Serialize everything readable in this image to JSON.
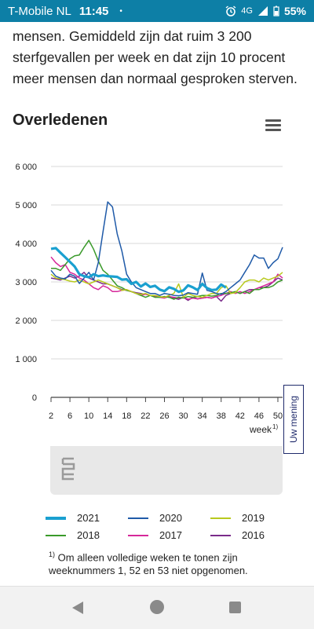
{
  "statusbar": {
    "carrier": "T-Mobile  NL",
    "time": "11:45",
    "dot": "•",
    "network": "4G",
    "battery": "55%",
    "icons": [
      "alarm-icon",
      "signal-icon",
      "battery-icon"
    ]
  },
  "intro_text": "mensen. Gemiddeld zijn dat ruim 3 200 sterfgevallen per week en dat zijn 10 procent meer mensen dan normaal gesproken sterven.",
  "chart_title": "Overledenen",
  "feedback_label": "Uw mening",
  "footnote": {
    "marker": "1)",
    "text": "Om alleen volledige weken te tonen zijn weeknummers 1, 52 en 53 niet opgenomen."
  },
  "chart_data": {
    "type": "line",
    "title": "Overledenen",
    "xlabel": "week",
    "xlabel_sup": "1)",
    "ylabel": "",
    "ylim": [
      0,
      6000
    ],
    "xlim": [
      2,
      51
    ],
    "yticks": [
      0,
      1000,
      2000,
      3000,
      4000,
      5000,
      6000
    ],
    "ytick_labels": [
      "0",
      "1 000",
      "2 000",
      "3 000",
      "4 000",
      "5 000",
      "6 000"
    ],
    "xticks": [
      2,
      6,
      10,
      14,
      18,
      22,
      26,
      30,
      34,
      38,
      42,
      46,
      50
    ],
    "grid": true,
    "legend_position": "bottom",
    "series": [
      {
        "name": "2021",
        "color": "#1aa0d0",
        "width": 3.2,
        "x": [
          2,
          3,
          4,
          5,
          6,
          7,
          8,
          9,
          10,
          11,
          12,
          13,
          14,
          15,
          16,
          17,
          18,
          19,
          20,
          21,
          22,
          23,
          24,
          25,
          26,
          27,
          28,
          29,
          30,
          31,
          32,
          33,
          34,
          35,
          36,
          37,
          38,
          39
        ],
        "y": [
          3860,
          3880,
          3760,
          3640,
          3520,
          3400,
          3200,
          3150,
          3120,
          3200,
          3150,
          3170,
          3150,
          3140,
          3130,
          3060,
          3070,
          2950,
          3000,
          2880,
          2960,
          2870,
          2900,
          2800,
          2760,
          2860,
          2820,
          2740,
          2780,
          2910,
          2860,
          2790,
          2950,
          2840,
          2790,
          2800,
          2930,
          2850
        ]
      },
      {
        "name": "2020",
        "color": "#1f5aa8",
        "width": 1.5,
        "x": [
          2,
          3,
          4,
          5,
          6,
          7,
          8,
          9,
          10,
          11,
          12,
          13,
          14,
          15,
          16,
          17,
          18,
          19,
          20,
          21,
          22,
          23,
          24,
          25,
          26,
          27,
          28,
          29,
          30,
          31,
          32,
          33,
          34,
          35,
          36,
          37,
          38,
          39,
          40,
          41,
          42,
          43,
          44,
          45,
          46,
          47,
          48,
          49,
          50,
          51
        ],
        "y": [
          3300,
          3150,
          3100,
          3080,
          3200,
          3150,
          2960,
          3100,
          3250,
          3050,
          3500,
          4300,
          5080,
          4950,
          4250,
          3800,
          3200,
          3000,
          2850,
          2800,
          2750,
          2700,
          2700,
          2650,
          2700,
          2680,
          2650,
          2640,
          2660,
          2720,
          2700,
          2680,
          3230,
          2780,
          2750,
          2700,
          2680,
          2750,
          2850,
          2950,
          3050,
          3250,
          3450,
          3700,
          3620,
          3620,
          3350,
          3500,
          3600,
          3900
        ]
      },
      {
        "name": "2019",
        "color": "#b8c91e",
        "width": 1.5,
        "x": [
          2,
          3,
          4,
          5,
          6,
          7,
          8,
          9,
          10,
          11,
          12,
          13,
          14,
          15,
          16,
          17,
          18,
          19,
          20,
          21,
          22,
          23,
          24,
          25,
          26,
          27,
          28,
          29,
          30,
          31,
          32,
          33,
          34,
          35,
          36,
          37,
          38,
          39,
          40,
          41,
          42,
          43,
          44,
          45,
          46,
          47,
          48,
          49,
          50,
          51
        ],
        "y": [
          3200,
          3100,
          3080,
          3060,
          3020,
          3000,
          3050,
          3000,
          2950,
          3000,
          3050,
          3000,
          2950,
          2900,
          2850,
          2780,
          2800,
          2750,
          2700,
          2680,
          2700,
          2650,
          2650,
          2620,
          2600,
          2650,
          2700,
          2950,
          2600,
          2700,
          2650,
          2620,
          2600,
          2650,
          2700,
          2700,
          2850,
          2900,
          2700,
          2720,
          2850,
          3000,
          3050,
          3050,
          3000,
          3100,
          3050,
          3100,
          3150,
          3250
        ]
      },
      {
        "name": "2018",
        "color": "#3a9a2a",
        "width": 1.5,
        "x": [
          2,
          3,
          4,
          5,
          6,
          7,
          8,
          9,
          10,
          11,
          12,
          13,
          14,
          15,
          16,
          17,
          18,
          19,
          20,
          21,
          22,
          23,
          24,
          25,
          26,
          27,
          28,
          29,
          30,
          31,
          32,
          33,
          34,
          35,
          36,
          37,
          38,
          39,
          40,
          41,
          42,
          43,
          44,
          45,
          46,
          47,
          48,
          49,
          50,
          51
        ],
        "y": [
          3350,
          3350,
          3300,
          3450,
          3600,
          3680,
          3700,
          3900,
          4080,
          3850,
          3550,
          3300,
          3200,
          3050,
          2900,
          2850,
          2780,
          2750,
          2700,
          2650,
          2600,
          2650,
          2600,
          2600,
          2620,
          2600,
          2550,
          2600,
          2580,
          2620,
          2600,
          2620,
          2650,
          2650,
          2630,
          2650,
          2700,
          2700,
          2720,
          2750,
          2700,
          2750,
          2700,
          2800,
          2800,
          2850,
          2850,
          2900,
          3000,
          3050
        ]
      },
      {
        "name": "2017",
        "color": "#d6289a",
        "width": 1.5,
        "x": [
          2,
          3,
          4,
          5,
          6,
          7,
          8,
          9,
          10,
          11,
          12,
          13,
          14,
          15,
          16,
          17,
          18,
          19,
          20,
          21,
          22,
          23,
          24,
          25,
          26,
          27,
          28,
          29,
          30,
          31,
          32,
          33,
          34,
          35,
          36,
          37,
          38,
          39,
          40,
          41,
          42,
          43,
          44,
          45,
          46,
          47,
          48,
          49,
          50,
          51
        ],
        "y": [
          3650,
          3500,
          3400,
          3450,
          3250,
          3200,
          3100,
          3050,
          2950,
          2850,
          2800,
          2900,
          2850,
          2750,
          2750,
          2780,
          2800,
          2750,
          2700,
          2650,
          2680,
          2650,
          2620,
          2600,
          2580,
          2620,
          2600,
          2580,
          2600,
          2550,
          2580,
          2560,
          2580,
          2600,
          2580,
          2620,
          2650,
          2700,
          2750,
          2700,
          2750,
          2700,
          2750,
          2800,
          2850,
          2900,
          2950,
          3000,
          3200,
          3100
        ]
      },
      {
        "name": "2016",
        "color": "#7a2c8a",
        "width": 1.5,
        "x": [
          2,
          3,
          4,
          5,
          6,
          7,
          8,
          9,
          10,
          11,
          12,
          13,
          14,
          15,
          16,
          17,
          18,
          19,
          20,
          21,
          22,
          23,
          24,
          25,
          26,
          27,
          28,
          29,
          30,
          31,
          32,
          33,
          34,
          35,
          36,
          37,
          38,
          39,
          40,
          41,
          42,
          43,
          44,
          45,
          46,
          47,
          48,
          49,
          50,
          51
        ],
        "y": [
          3100,
          3080,
          3050,
          3100,
          3150,
          3100,
          3150,
          3250,
          3100,
          3050,
          3000,
          2950,
          2950,
          2900,
          2850,
          2800,
          2780,
          2750,
          2720,
          2700,
          2680,
          2650,
          2650,
          2600,
          2620,
          2600,
          2580,
          2550,
          2600,
          2520,
          2600,
          2560,
          2580,
          2600,
          2580,
          2620,
          2500,
          2650,
          2700,
          2750,
          2700,
          2750,
          2800,
          2800,
          2850,
          2850,
          2900,
          3000,
          3100,
          3050
        ]
      }
    ]
  },
  "legend": [
    {
      "label": "2021",
      "color": "#1aa0d0",
      "thick": true
    },
    {
      "label": "2020",
      "color": "#1f5aa8",
      "thick": false
    },
    {
      "label": "2019",
      "color": "#b8c91e",
      "thick": false
    },
    {
      "label": "2018",
      "color": "#3a9a2a",
      "thick": false
    },
    {
      "label": "2017",
      "color": "#d6289a",
      "thick": false
    },
    {
      "label": "2016",
      "color": "#7a2c8a",
      "thick": false
    }
  ]
}
